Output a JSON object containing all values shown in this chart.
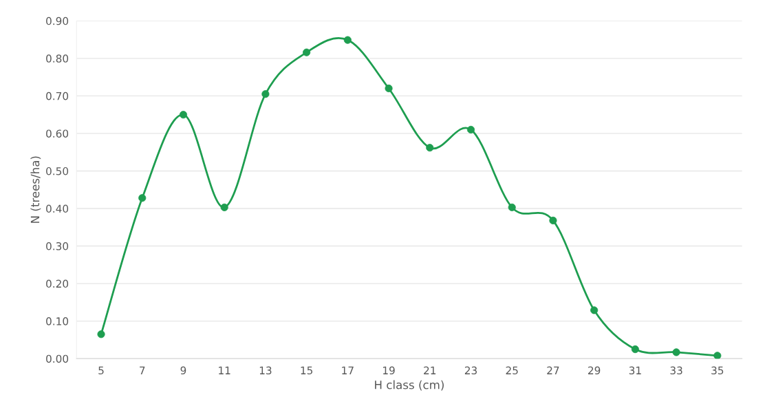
{
  "chart_data": {
    "type": "line",
    "xlabel": "H class (cm)",
    "ylabel": "N (trees/ha)",
    "categories": [
      "5",
      "7",
      "9",
      "11",
      "13",
      "15",
      "17",
      "19",
      "21",
      "23",
      "25",
      "27",
      "29",
      "31",
      "33",
      "35"
    ],
    "series": [
      {
        "color": "#1e9e50",
        "values": [
          0.065,
          0.428,
          0.65,
          0.403,
          0.705,
          0.816,
          0.849,
          0.72,
          0.562,
          0.61,
          0.403,
          0.368,
          0.129,
          0.025,
          0.017,
          0.008
        ]
      }
    ],
    "ylim": [
      0,
      0.9
    ],
    "yticks": [
      {
        "value": 0,
        "label": "0.00"
      },
      {
        "value": 0.1,
        "label": "0.10"
      },
      {
        "value": 0.2,
        "label": "0.20"
      },
      {
        "value": 0.3,
        "label": "0.30"
      },
      {
        "value": 0.4,
        "label": "0.40"
      },
      {
        "value": 0.5,
        "label": "0.50"
      },
      {
        "value": 0.6,
        "label": "0.60"
      },
      {
        "value": 0.7,
        "label": "0.70"
      },
      {
        "value": 0.8,
        "label": "0.80"
      },
      {
        "value": 0.9,
        "label": "0.90"
      }
    ],
    "grid": "y",
    "marker": "circle",
    "line_style": "solid",
    "legend": false
  }
}
